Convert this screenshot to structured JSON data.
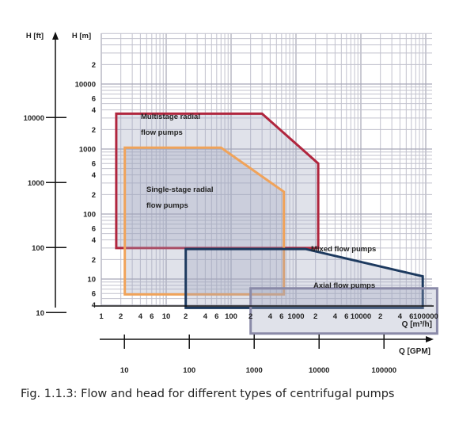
{
  "chart_data": {
    "type": "area",
    "title": "",
    "caption": "Fig. 1.1.3: Flow and head for different types of centrifugal pumps",
    "x_axis": {
      "label": "Q [m³/h]",
      "scale": "log",
      "range": [
        1,
        200000
      ],
      "major_tick_labels": [
        "1",
        "10",
        "100",
        "1000",
        "10000",
        "100000"
      ],
      "minor_tick_labels": [
        "2",
        "4",
        "6"
      ]
    },
    "x_axis_secondary": {
      "label": "Q [GPM]",
      "scale": "log",
      "tick_labels": [
        "10",
        "100",
        "1000",
        "10000",
        "100000"
      ]
    },
    "y_axis": {
      "label": "H [m]",
      "scale": "log",
      "range": [
        1,
        20000
      ],
      "major_tick_labels": [
        "10",
        "100",
        "1000",
        "10000"
      ],
      "minor_tick_labels": [
        "2",
        "4",
        "6"
      ]
    },
    "y_axis_secondary": {
      "label": "H [ft]",
      "scale": "log",
      "tick_labels": [
        "10",
        "100",
        "1000",
        "10000"
      ]
    },
    "grid": true,
    "series": [
      {
        "name": "Multistage radial flow pumps",
        "color": "#b0263e",
        "points": [
          [
            1.7,
            3500
          ],
          [
            300,
            3500
          ],
          [
            2200,
            600
          ],
          [
            2200,
            30
          ],
          [
            1.7,
            30
          ]
        ]
      },
      {
        "name": "Single-stage radial flow pumps",
        "color": "#f0a35a",
        "points": [
          [
            2.3,
            1050
          ],
          [
            70,
            1050
          ],
          [
            650,
            220
          ],
          [
            650,
            5.8
          ],
          [
            2.3,
            5.8
          ]
        ]
      },
      {
        "name": "Mixed flow pumps",
        "color": "#1d3a5f",
        "points": [
          [
            20,
            29
          ],
          [
            1400,
            29
          ],
          [
            90000,
            11
          ],
          [
            90000,
            3.6
          ],
          [
            20,
            3.6
          ]
        ]
      },
      {
        "name": "Axial flow pumps",
        "color": "#8a8aa8",
        "points": [
          [
            200,
            7.2
          ],
          [
            150000,
            7.2
          ],
          [
            150000,
            1.45
          ],
          [
            200,
            1.45
          ]
        ]
      }
    ]
  }
}
